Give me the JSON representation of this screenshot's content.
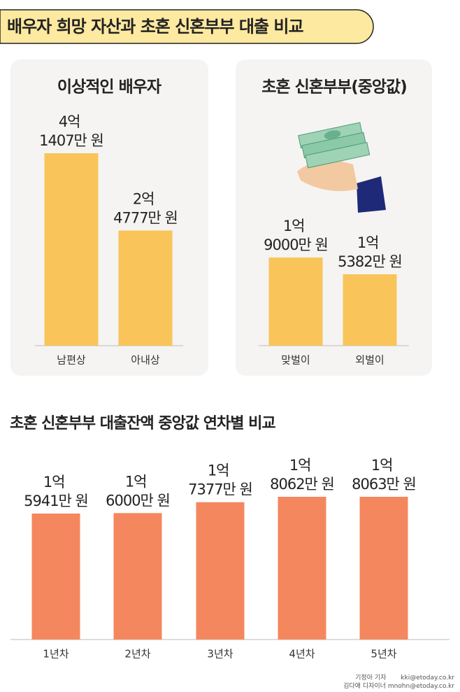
{
  "header": {
    "title": "배우자 희망 자산과 초혼 신혼부부 대출 비교"
  },
  "chart_data": [
    {
      "type": "bar",
      "title": "이상적인 배우자",
      "categories": [
        "남편상",
        "아내상"
      ],
      "values": [
        41407,
        24777
      ],
      "value_labels": [
        "4억 1407만 원",
        "2억 4777만 원"
      ],
      "color": "#f9c55a"
    },
    {
      "type": "bar",
      "title": "초혼 신혼부부(중앙값)",
      "categories": [
        "맞벌이",
        "외벌이"
      ],
      "values": [
        19000,
        15382
      ],
      "value_labels": [
        "1억 9000만 원",
        "1억 5382만 원"
      ],
      "color": "#f9c55a"
    },
    {
      "type": "bar",
      "title": "초혼 신혼부부 대출잔액 중앙값 연차별 비교",
      "categories": [
        "1년차",
        "2년차",
        "3년차",
        "4년차",
        "5년차"
      ],
      "values": [
        15941,
        16000,
        17377,
        18062,
        18063
      ],
      "value_labels": [
        "1억 5941만 원",
        "1억 6000만 원",
        "1억 7377만 원",
        "1억 8062만 원",
        "1억 8063만 원"
      ],
      "color": "#f4875e"
    }
  ],
  "credits": [
    "기정아 기자",
    "kki@etoday.co.kr",
    "김다애 디자이너",
    "mnohn@etoday.co.kr"
  ]
}
